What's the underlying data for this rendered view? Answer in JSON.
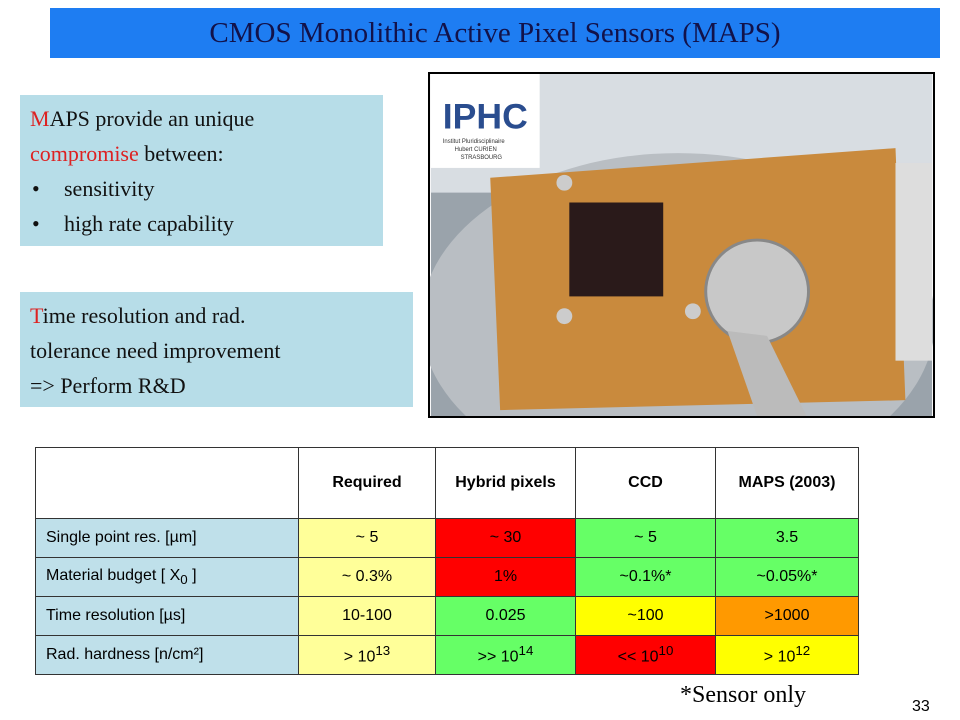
{
  "header": {
    "title": "CMOS Monolithic Active Pixel Sensors (MAPS)"
  },
  "box1": {
    "lines": [
      [
        {
          "text": "M",
          "accent": true
        },
        {
          "text": "APS provide an unique"
        }
      ],
      [
        {
          "text": "compromise",
          "accent": true
        },
        {
          "text": " between:"
        }
      ]
    ],
    "bullets": [
      "sensitivity",
      "high rate capability"
    ]
  },
  "box2": {
    "lines": [
      [
        {
          "text": "T",
          "accent": true
        },
        {
          "text": "ime resolution and rad."
        }
      ],
      [
        {
          "text": "tolerance need improvement"
        }
      ],
      [
        {
          "text": "=> Perform R&D"
        }
      ]
    ]
  },
  "photo": {
    "logo": "IPHC",
    "logo_lines": [
      "Institut Pluridisciplinaire",
      "Hubert CURIEN",
      "STRASBOURG"
    ]
  },
  "table": {
    "header": [
      "",
      "Required",
      "Hybrid pixels",
      "CCD",
      "MAPS (2003)"
    ],
    "rows": [
      [
        {
          "text": "Single point res. [µm]"
        },
        {
          "text": "~ 5"
        },
        {
          "text": "~ 30"
        },
        {
          "text": "~ 5"
        },
        {
          "text": "3.5"
        }
      ],
      [
        {
          "text": "Material budget  [ X",
          "sub": "0",
          "after": " ]"
        },
        {
          "text": "~ 0.3%"
        },
        {
          "text": "1%"
        },
        {
          "text": "~0.1%*"
        },
        {
          "text": "~0.05%*"
        }
      ],
      [
        {
          "text": "Time resolution  [µs]"
        },
        {
          "text": "10-100"
        },
        {
          "text": "0.025"
        },
        {
          "text": "~100"
        },
        {
          "text": ">1000"
        }
      ],
      [
        {
          "text": "Rad. hardness   [n/cm²]"
        },
        {
          "text": "> 10",
          "sup": "13"
        },
        {
          "text": ">> 10",
          "sup": "14"
        },
        {
          "text": "<< 10",
          "sup": "10"
        },
        {
          "text": "> 10",
          "sup": "12"
        }
      ]
    ]
  },
  "footnote": "*Sensor only",
  "page_number": "33"
}
